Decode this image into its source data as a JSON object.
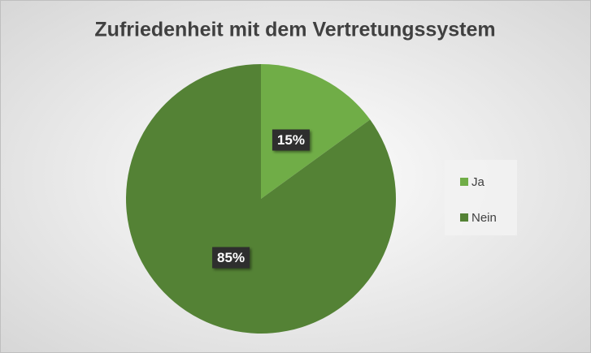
{
  "chart_data": {
    "type": "pie",
    "title": "Zufriedenheit mit dem Vertretungssystem",
    "categories": [
      "Ja",
      "Nein"
    ],
    "values": [
      15,
      85
    ],
    "value_labels": [
      "15%",
      "85%"
    ],
    "colors": [
      "#70ad47",
      "#548235"
    ],
    "legend": "right"
  }
}
